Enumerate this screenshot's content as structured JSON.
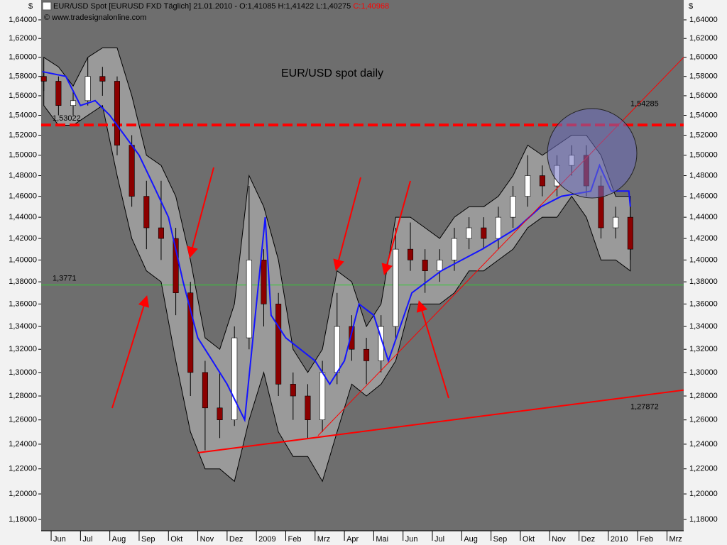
{
  "chart_data": {
    "type": "candlestick",
    "header": "EUR/USD Spot [EURUSD FXD  Täglich] 21.01.2010 - O:1,41085 H:1,41422 L:1,40275",
    "header_close": "C:1,40968",
    "copyright": "© www.tradesignalonline.com",
    "currency": "$",
    "title": "EUR/USD spot daily",
    "title_color": "#ffff00",
    "background": "#6e6e6e",
    "up_color": "#ffffff",
    "down_color": "#8b0000",
    "x": [
      -0.25,
      0.25,
      0.75,
      1.25,
      1.75,
      2.25,
      2.75,
      3.25,
      3.75,
      4.25,
      4.75,
      5.25,
      5.75,
      6.25,
      6.75,
      7.25,
      7.75,
      8.25,
      8.75,
      9.25,
      9.75,
      10.25,
      10.75,
      11.25,
      11.75,
      12.25,
      12.75,
      13.25,
      13.75,
      14.25,
      14.75,
      15.25,
      15.75,
      16.25,
      16.75,
      17.25,
      17.75,
      18.25,
      18.75,
      19.25,
      19.75
    ],
    "open": [
      1.58,
      1.575,
      1.55,
      1.555,
      1.58,
      1.575,
      1.51,
      1.46,
      1.43,
      1.42,
      1.37,
      1.3,
      1.27,
      1.26,
      1.33,
      1.4,
      1.36,
      1.29,
      1.28,
      1.26,
      1.3,
      1.34,
      1.32,
      1.31,
      1.34,
      1.41,
      1.4,
      1.39,
      1.4,
      1.42,
      1.43,
      1.42,
      1.44,
      1.46,
      1.48,
      1.47,
      1.49,
      1.5,
      1.47,
      1.43,
      1.44
    ],
    "high": [
      1.585,
      1.58,
      1.565,
      1.6,
      1.59,
      1.58,
      1.52,
      1.475,
      1.475,
      1.43,
      1.38,
      1.31,
      1.3,
      1.34,
      1.47,
      1.41,
      1.37,
      1.3,
      1.29,
      1.31,
      1.37,
      1.35,
      1.33,
      1.35,
      1.43,
      1.435,
      1.41,
      1.41,
      1.43,
      1.44,
      1.44,
      1.45,
      1.47,
      1.5,
      1.49,
      1.5,
      1.51,
      1.51,
      1.48,
      1.45,
      1.45
    ],
    "low": [
      1.565,
      1.54,
      1.54,
      1.55,
      1.56,
      1.5,
      1.45,
      1.41,
      1.4,
      1.35,
      1.28,
      1.235,
      1.245,
      1.255,
      1.32,
      1.34,
      1.28,
      1.26,
      1.245,
      1.25,
      1.29,
      1.31,
      1.29,
      1.3,
      1.33,
      1.39,
      1.37,
      1.38,
      1.39,
      1.41,
      1.41,
      1.41,
      1.43,
      1.45,
      1.46,
      1.46,
      1.48,
      1.46,
      1.42,
      1.42,
      1.4
    ],
    "close": [
      1.575,
      1.55,
      1.555,
      1.58,
      1.575,
      1.51,
      1.46,
      1.43,
      1.42,
      1.37,
      1.3,
      1.27,
      1.26,
      1.33,
      1.4,
      1.36,
      1.29,
      1.28,
      1.26,
      1.3,
      1.34,
      1.32,
      1.31,
      1.34,
      1.41,
      1.4,
      1.39,
      1.4,
      1.42,
      1.43,
      1.42,
      1.44,
      1.46,
      1.48,
      1.47,
      1.49,
      1.5,
      1.47,
      1.43,
      1.44,
      1.41
    ],
    "band": {
      "color": "#9a9a9a",
      "upper": [
        1.6,
        1.59,
        1.57,
        1.6,
        1.61,
        1.61,
        1.56,
        1.5,
        1.49,
        1.46,
        1.4,
        1.33,
        1.32,
        1.36,
        1.48,
        1.45,
        1.4,
        1.32,
        1.3,
        1.32,
        1.39,
        1.38,
        1.34,
        1.36,
        1.44,
        1.44,
        1.43,
        1.42,
        1.44,
        1.45,
        1.45,
        1.46,
        1.48,
        1.51,
        1.5,
        1.51,
        1.52,
        1.52,
        1.5,
        1.46,
        1.46
      ],
      "lower": [
        1.55,
        1.53,
        1.53,
        1.54,
        1.55,
        1.48,
        1.42,
        1.39,
        1.38,
        1.31,
        1.25,
        1.22,
        1.22,
        1.21,
        1.26,
        1.3,
        1.25,
        1.23,
        1.23,
        1.21,
        1.25,
        1.29,
        1.28,
        1.29,
        1.31,
        1.36,
        1.36,
        1.36,
        1.37,
        1.39,
        1.39,
        1.4,
        1.41,
        1.43,
        1.44,
        1.44,
        1.46,
        1.44,
        1.4,
        1.4,
        1.39
      ]
    },
    "line": {
      "color": "#1414ff",
      "x": [
        -0.3,
        0.5,
        1,
        1.5,
        2,
        2.5,
        3,
        3.5,
        4,
        4.5,
        5,
        5.5,
        6,
        6.6,
        7.3,
        7.5,
        8,
        9,
        9.5,
        10,
        10.5,
        11,
        11.5,
        12.3,
        13.3,
        14.7,
        15.9,
        16.7,
        17.4,
        18.4,
        18.7,
        19.1,
        19.7,
        19.75
      ],
      "values": [
        1.585,
        1.58,
        1.55,
        1.555,
        1.54,
        1.52,
        1.5,
        1.47,
        1.44,
        1.38,
        1.33,
        1.31,
        1.29,
        1.26,
        1.44,
        1.35,
        1.33,
        1.31,
        1.29,
        1.31,
        1.36,
        1.35,
        1.31,
        1.37,
        1.39,
        1.41,
        1.43,
        1.45,
        1.46,
        1.465,
        1.49,
        1.465,
        1.465,
        1.45
      ]
    },
    "hlines": [
      {
        "value": 1.53022,
        "label": "1,53022",
        "color": "#ff0000",
        "dashed": true
      },
      {
        "value": 1.3771,
        "label": "1,3771",
        "color": "#33cc33",
        "dashed": false
      }
    ],
    "trendlines": [
      {
        "x": [
          5.0,
          21.57
        ],
        "values": [
          1.233,
          1.285
        ],
        "label": "1,27872",
        "color": "#ff0000",
        "width": 2
      },
      {
        "x": [
          9.1,
          21.57
        ],
        "values": [
          1.247,
          1.6
        ],
        "label": "1,54285",
        "color": "#ff0000",
        "width": 1
      }
    ],
    "log": true,
    "ylim": [
      1.1712,
      1.6616
    ],
    "yticks": [
      {
        "value": 1.18,
        "label": "1,18000"
      },
      {
        "value": 1.2,
        "label": "1,20000"
      },
      {
        "value": 1.22,
        "label": "1,22000"
      },
      {
        "value": 1.24,
        "label": "1,24000"
      },
      {
        "value": 1.26,
        "label": "1,26000"
      },
      {
        "value": 1.28,
        "label": "1,28000"
      },
      {
        "value": 1.3,
        "label": "1,30000"
      },
      {
        "value": 1.32,
        "label": "1,32000"
      },
      {
        "value": 1.34,
        "label": "1,34000"
      },
      {
        "value": 1.36,
        "label": "1,36000"
      },
      {
        "value": 1.38,
        "label": "1,38000"
      },
      {
        "value": 1.4,
        "label": "1,40000"
      },
      {
        "value": 1.42,
        "label": "1,42000"
      },
      {
        "value": 1.44,
        "label": "1,44000"
      },
      {
        "value": 1.46,
        "label": "1,46000"
      },
      {
        "value": 1.48,
        "label": "1,48000"
      },
      {
        "value": 1.5,
        "label": "1,50000"
      },
      {
        "value": 1.52,
        "label": "1,52000"
      },
      {
        "value": 1.54,
        "label": "1,54000"
      },
      {
        "value": 1.56,
        "label": "1,56000"
      },
      {
        "value": 1.58,
        "label": "1,58000"
      },
      {
        "value": 1.6,
        "label": "1,60000"
      },
      {
        "value": 1.62,
        "label": "1,62000"
      },
      {
        "value": 1.64,
        "label": "1,64000"
      }
    ],
    "xlim": [
      -0.34,
      21.57
    ],
    "xticks": [
      {
        "value": 0,
        "label": "Jun"
      },
      {
        "value": 1,
        "label": "Jul"
      },
      {
        "value": 2,
        "label": "Aug"
      },
      {
        "value": 3,
        "label": "Sep"
      },
      {
        "value": 4,
        "label": "Okt"
      },
      {
        "value": 5,
        "label": "Nov"
      },
      {
        "value": 6,
        "label": "Dez"
      },
      {
        "value": 7,
        "label": "2009"
      },
      {
        "value": 8,
        "label": "Feb"
      },
      {
        "value": 9,
        "label": "Mrz"
      },
      {
        "value": 10,
        "label": "Apr"
      },
      {
        "value": 11,
        "label": "Mai"
      },
      {
        "value": 12,
        "label": "Jun"
      },
      {
        "value": 13,
        "label": "Jul"
      },
      {
        "value": 14,
        "label": "Aug"
      },
      {
        "value": 15,
        "label": "Sep"
      },
      {
        "value": 16,
        "label": "Okt"
      },
      {
        "value": 17,
        "label": "Nov"
      },
      {
        "value": 18,
        "label": "Dez"
      },
      {
        "value": 19,
        "label": "2010"
      },
      {
        "value": 20,
        "label": "Feb"
      },
      {
        "value": 21,
        "label": "Mrz"
      }
    ]
  }
}
